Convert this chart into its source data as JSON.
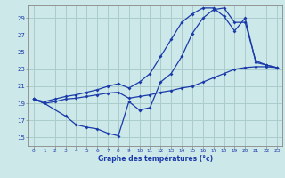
{
  "title": "Graphe des températures (°c)",
  "bg_color": "#cce8e8",
  "grid_color": "#aacccc",
  "line_color": "#1a3aaa",
  "xlim": [
    -0.5,
    23.5
  ],
  "ylim": [
    14.0,
    30.5
  ],
  "yticks": [
    15,
    17,
    19,
    21,
    23,
    25,
    27,
    29
  ],
  "xticks": [
    0,
    1,
    2,
    3,
    4,
    5,
    6,
    7,
    8,
    9,
    10,
    11,
    12,
    13,
    14,
    15,
    16,
    17,
    18,
    19,
    20,
    21,
    22,
    23
  ],
  "line1": {
    "x": [
      0,
      1,
      2,
      3,
      4,
      5,
      6,
      7,
      8,
      9,
      10,
      11,
      12,
      13,
      14,
      15,
      16,
      17,
      18,
      19,
      20,
      21,
      22,
      23
    ],
    "y": [
      19.5,
      19.0,
      19.2,
      19.5,
      19.6,
      19.8,
      20.0,
      20.2,
      20.3,
      19.6,
      19.8,
      20.0,
      20.3,
      20.5,
      20.8,
      21.0,
      21.5,
      22.0,
      22.5,
      23.0,
      23.2,
      23.3,
      23.3,
      23.2
    ]
  },
  "line2": {
    "x": [
      0,
      1,
      3,
      4,
      5,
      6,
      7,
      8,
      9,
      10,
      11,
      12,
      13,
      14,
      15,
      16,
      17,
      18,
      19,
      20,
      21,
      22,
      23
    ],
    "y": [
      19.5,
      19.0,
      17.5,
      16.5,
      16.2,
      16.0,
      15.5,
      15.2,
      19.2,
      18.2,
      18.5,
      21.5,
      22.5,
      24.5,
      27.2,
      29.0,
      30.0,
      30.2,
      28.5,
      28.5,
      24.0,
      23.5,
      23.2
    ]
  },
  "line3": {
    "x": [
      0,
      1,
      2,
      3,
      4,
      5,
      6,
      7,
      8,
      9,
      10,
      11,
      12,
      13,
      14,
      15,
      16,
      17,
      18,
      19,
      20,
      21,
      22,
      23
    ],
    "y": [
      19.5,
      19.2,
      19.5,
      19.8,
      20.0,
      20.3,
      20.6,
      21.0,
      21.3,
      20.8,
      21.5,
      22.5,
      24.5,
      26.5,
      28.5,
      29.5,
      30.2,
      30.2,
      29.2,
      27.5,
      29.0,
      23.8,
      23.5,
      23.2
    ]
  }
}
